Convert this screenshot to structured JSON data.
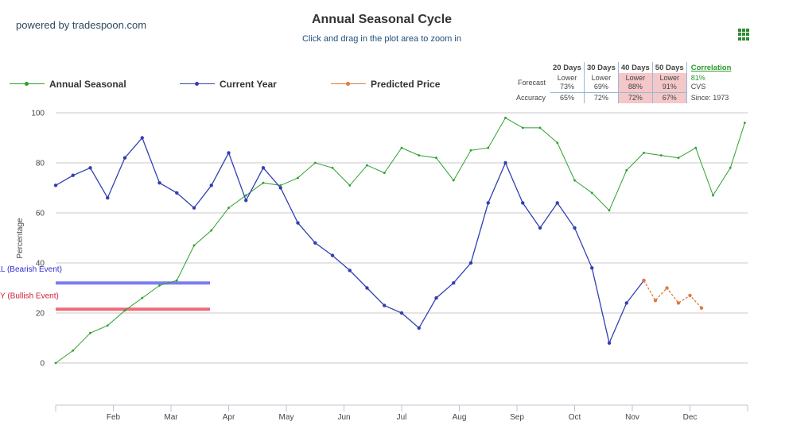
{
  "brand": "powered by tradespoon.com",
  "title": "Annual Seasonal Cycle",
  "subtitle": "Click and drag in the plot area to zoom in",
  "legend": [
    {
      "label": "Annual Seasonal",
      "color": "#2ca02c"
    },
    {
      "label": "Current Year",
      "color": "#3040b0"
    },
    {
      "label": "Predicted Price",
      "color": "#e07b39"
    }
  ],
  "forecast_table": {
    "headers": [
      "20 Days",
      "30 Days",
      "40 Days",
      "50 Days"
    ],
    "forecast_label": "Forecast",
    "forecast": [
      {
        "dir": "Lower",
        "pct": "73%",
        "highlight": false
      },
      {
        "dir": "Lower",
        "pct": "69%",
        "highlight": false
      },
      {
        "dir": "Lower",
        "pct": "88%",
        "highlight": true
      },
      {
        "dir": "Lower",
        "pct": "91%",
        "highlight": true
      }
    ],
    "accuracy_label": "Accuracy",
    "accuracy": [
      {
        "pct": "65%",
        "highlight": false
      },
      {
        "pct": "72%",
        "highlight": false
      },
      {
        "pct": "72%",
        "highlight": true
      },
      {
        "pct": "67%",
        "highlight": true
      }
    ],
    "correlation_label": "Correlation",
    "correlation_value": "81%",
    "ticker": "CVS",
    "since": "Since: 1973"
  },
  "chart_data": {
    "type": "line",
    "ylabel": "Percentage",
    "ylim": [
      0,
      100
    ],
    "yticks": [
      0,
      20,
      40,
      60,
      80,
      100
    ],
    "xticks": [
      "Feb",
      "Mar",
      "Apr",
      "May",
      "Jun",
      "Jul",
      "Aug",
      "Sep",
      "Oct",
      "Nov",
      "Dec"
    ],
    "grid": true,
    "events": [
      {
        "label": "SELL (Bearish Event)",
        "value": 32,
        "color": "#3030d0",
        "line_color": "#7b7bf0"
      },
      {
        "label": "BUY (Bullish Event)",
        "value": 21.5,
        "color": "#d0203a",
        "line_color": "#f06a7a"
      }
    ],
    "series": [
      {
        "name": "Annual Seasonal",
        "color": "#2ca02c",
        "x": [
          0,
          0.3,
          0.6,
          0.9,
          1.2,
          1.5,
          1.8,
          2.1,
          2.4,
          2.7,
          3.0,
          3.3,
          3.6,
          3.9,
          4.2,
          4.5,
          4.8,
          5.1,
          5.4,
          5.7,
          6.0,
          6.3,
          6.6,
          6.9,
          7.2,
          7.5,
          7.8,
          8.1,
          8.4,
          8.7,
          9.0,
          9.3,
          9.6,
          9.9,
          10.2,
          10.5,
          10.8,
          11.1,
          11.4,
          11.7,
          11.95
        ],
        "values": [
          0,
          5,
          12,
          15,
          21,
          26,
          31,
          33,
          47,
          53,
          62,
          67,
          72,
          71,
          74,
          80,
          78,
          71,
          79,
          76,
          86,
          83,
          82,
          73,
          85,
          86,
          98,
          94,
          94,
          88,
          73,
          68,
          61,
          77,
          84,
          83,
          82,
          86,
          67,
          78,
          96
        ]
      },
      {
        "name": "Current Year",
        "color": "#3040b0",
        "x": [
          0,
          0.3,
          0.6,
          0.9,
          1.2,
          1.5,
          1.8,
          2.1,
          2.4,
          2.7,
          3.0,
          3.3,
          3.6,
          3.9,
          4.2,
          4.5,
          4.8,
          5.1,
          5.4,
          5.7,
          6.0,
          6.3,
          6.6,
          6.9,
          7.2,
          7.5,
          7.8,
          8.1,
          8.4,
          8.7,
          9.0,
          9.3,
          9.6,
          9.9,
          10.2
        ],
        "values": [
          71,
          75,
          78,
          66,
          82,
          90,
          72,
          68,
          62,
          71,
          84,
          65,
          78,
          70,
          56,
          48,
          43,
          37,
          30,
          23,
          20,
          14,
          26,
          32,
          40,
          64,
          80,
          64,
          54,
          64,
          54,
          38,
          8,
          24,
          33
        ]
      },
      {
        "name": "Predicted Price",
        "color": "#e07b39",
        "x": [
          10.2,
          10.4,
          10.6,
          10.8,
          11.0,
          11.2
        ],
        "values": [
          33,
          25,
          30,
          24,
          27,
          22
        ]
      }
    ]
  }
}
